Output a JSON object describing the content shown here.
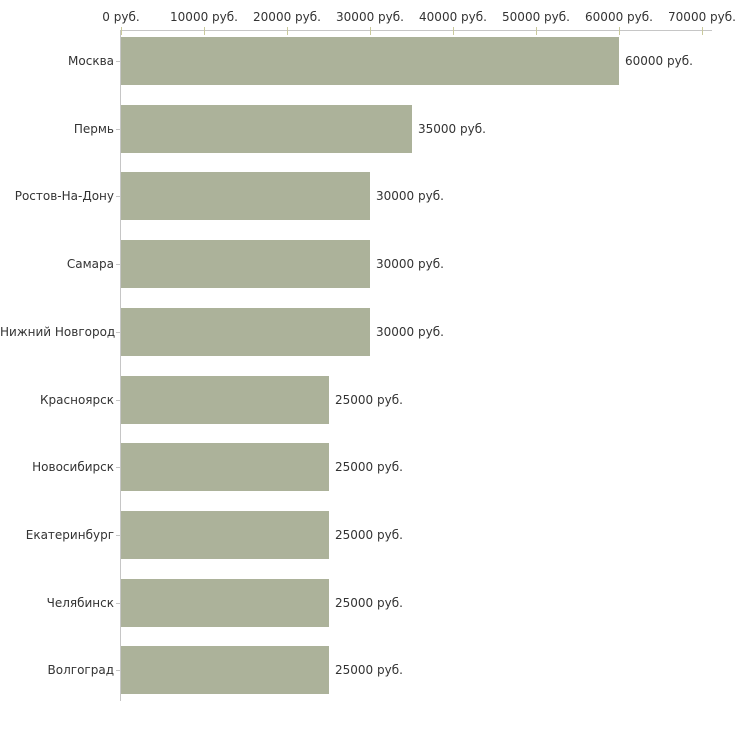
{
  "chart_data": {
    "type": "bar",
    "orientation": "horizontal",
    "title": "",
    "xlabel": "",
    "ylabel": "",
    "xlim": [
      0,
      70000
    ],
    "grid": false,
    "legend": false,
    "unit": "руб.",
    "categories": [
      "Москва",
      "Пермь",
      "Ростов-На-Дону",
      "Самара",
      "Нижний Новгород",
      "Красноярск",
      "Новосибирск",
      "Екатеринбург",
      "Челябинск",
      "Волгоград"
    ],
    "values": [
      60000,
      35000,
      30000,
      30000,
      30000,
      25000,
      25000,
      25000,
      25000,
      25000
    ],
    "value_labels": [
      "60000 руб.",
      "35000 руб.",
      "30000 руб.",
      "30000 руб.",
      "30000 руб.",
      "25000 руб.",
      "25000 руб.",
      "25000 руб.",
      "25000 руб.",
      "25000 руб."
    ],
    "x_ticks": [
      0,
      10000,
      20000,
      30000,
      40000,
      50000,
      60000,
      70000
    ],
    "x_tick_labels": [
      "0 руб.",
      "10000 руб.",
      "20000 руб.",
      "30000 руб.",
      "40000 руб.",
      "50000 руб.",
      "60000 руб.",
      "70000 руб."
    ],
    "colors": {
      "bar": "#acb29a",
      "axis": "#c6c6c6",
      "tick": "#c9c99c",
      "text": "#333333",
      "background": "#ffffff"
    }
  }
}
